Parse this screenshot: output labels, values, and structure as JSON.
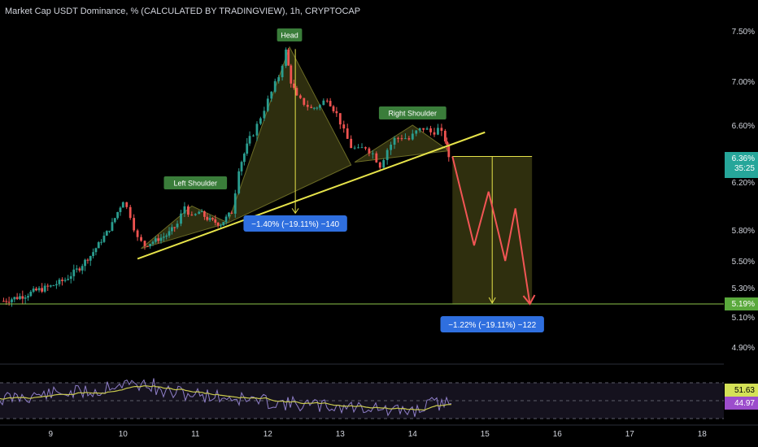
{
  "header": {
    "title": "Market Cap USDT Dominance, % (CALCULATED BY TRADINGVIEW), 1h, CRYPTOCAP"
  },
  "colors": {
    "up": "#2a9d8f",
    "down": "#ef5350",
    "neckline": "#e6e34a",
    "zone_fill": "#3b3b12",
    "arrow": "#f25555",
    "target_line": "#8bc34a",
    "price_badge": "#26a69a",
    "target_badge": "#5aa93c",
    "rsi_line": "#8f7fc9",
    "rsi_ma": "#c9c94e",
    "label_green": "#3a7d3a",
    "measure_blue": "#2f6fdf"
  },
  "chart_data": {
    "type": "candlestick",
    "title": "Market Cap USDT Dominance, % (CALCULATED BY TRADINGVIEW), 1h, CRYPTOCAP",
    "x_ticks": [
      "9",
      "10",
      "11",
      "12",
      "13",
      "14",
      "15",
      "16",
      "17",
      "18"
    ],
    "y_ticks": [
      "7.50%",
      "7.00%",
      "6.60%",
      "6.20%",
      "5.80%",
      "5.50%",
      "5.30%",
      "5.10%",
      "4.90%"
    ],
    "y_tick_values": [
      7.5,
      7.0,
      6.6,
      6.2,
      5.8,
      5.5,
      5.3,
      5.1,
      4.9
    ],
    "x_range": [
      8.3,
      18.3
    ],
    "price_scale": "log",
    "ylim": [
      4.8,
      7.8
    ],
    "series_close": [
      [
        8.35,
        5.21
      ],
      [
        8.5,
        5.23
      ],
      [
        8.65,
        5.25
      ],
      [
        8.8,
        5.28
      ],
      [
        9.0,
        5.31
      ],
      [
        9.2,
        5.36
      ],
      [
        9.4,
        5.45
      ],
      [
        9.55,
        5.55
      ],
      [
        9.7,
        5.7
      ],
      [
        9.85,
        5.85
      ],
      [
        10.0,
        6.05
      ],
      [
        10.1,
        5.92
      ],
      [
        10.2,
        5.72
      ],
      [
        10.3,
        5.65
      ],
      [
        10.45,
        5.7
      ],
      [
        10.6,
        5.75
      ],
      [
        10.75,
        5.85
      ],
      [
        10.85,
        6.0
      ],
      [
        10.95,
        5.9
      ],
      [
        11.05,
        5.95
      ],
      [
        11.2,
        5.88
      ],
      [
        11.35,
        5.85
      ],
      [
        11.5,
        5.95
      ],
      [
        11.6,
        6.3
      ],
      [
        11.75,
        6.5
      ],
      [
        11.85,
        6.6
      ],
      [
        11.95,
        6.75
      ],
      [
        12.05,
        6.9
      ],
      [
        12.15,
        7.05
      ],
      [
        12.25,
        7.3
      ],
      [
        12.32,
        7.0
      ],
      [
        12.4,
        6.85
      ],
      [
        12.5,
        6.8
      ],
      [
        12.6,
        6.75
      ],
      [
        12.72,
        6.78
      ],
      [
        12.82,
        6.85
      ],
      [
        12.95,
        6.7
      ],
      [
        13.05,
        6.55
      ],
      [
        13.15,
        6.45
      ],
      [
        13.25,
        6.42
      ],
      [
        13.35,
        6.45
      ],
      [
        13.45,
        6.4
      ],
      [
        13.55,
        6.32
      ],
      [
        13.65,
        6.43
      ],
      [
        13.75,
        6.5
      ],
      [
        13.85,
        6.52
      ],
      [
        13.95,
        6.5
      ],
      [
        14.05,
        6.55
      ],
      [
        14.15,
        6.58
      ],
      [
        14.25,
        6.55
      ],
      [
        14.35,
        6.57
      ],
      [
        14.45,
        6.5
      ],
      [
        14.5,
        6.38
      ]
    ],
    "current_price": "6.36%",
    "countdown": "35:25",
    "target_price": "5.19%",
    "annotations": {
      "left_shoulder": "Left Shoulder",
      "head": "Head",
      "right_shoulder": "Right Shoulder",
      "head_measure": "−1.40% (−19.11%) −140",
      "target_measure": "−1.22% (−19.11%) −122"
    },
    "rsi": {
      "levels": [
        "80.00"
      ],
      "value_rsi": "51.63",
      "value_ma": "44.97"
    }
  }
}
